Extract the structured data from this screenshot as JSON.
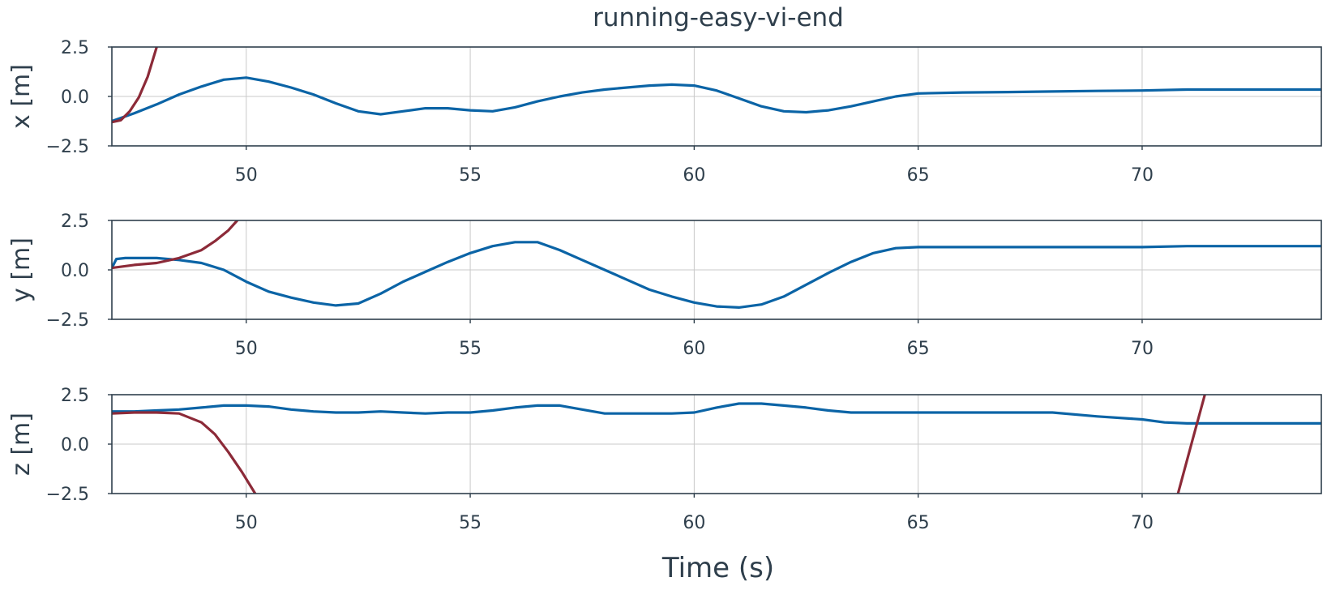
{
  "chart_data": {
    "type": "line",
    "title": "running-easy-vi-end",
    "xlabel": "Time (s)",
    "xlim": [
      47,
      74
    ],
    "xticks": [
      50,
      55,
      60,
      65,
      70
    ],
    "colors": {
      "series_a": "#0b64a6",
      "series_b": "#8c2a38",
      "text": "#2f3f4c",
      "grid": "#c9c9c9"
    },
    "grid": true,
    "panels": [
      {
        "ylabel": "x [m]",
        "ylim": [
          -2.5,
          2.5
        ],
        "yticks": [
          2.5,
          0.0,
          -2.5
        ],
        "ytick_labels": [
          "2.5",
          "0.0",
          "−2.5"
        ],
        "series": [
          {
            "x": [
              47.0,
              47.5,
              48.0,
              48.5,
              49.0,
              49.5,
              50.0,
              50.5,
              51.0,
              51.5,
              52.0,
              52.5,
              53.0,
              53.5,
              54.0,
              54.5,
              55.0,
              55.5,
              56.0,
              56.5,
              57.0,
              57.5,
              58.0,
              58.5,
              59.0,
              59.5,
              60.0,
              60.5,
              61.0,
              61.5,
              62.0,
              62.5,
              63.0,
              63.5,
              64.0,
              64.5,
              65.0,
              66.0,
              67.0,
              68.0,
              69.0,
              70.0,
              71.0,
              72.0,
              73.0,
              74.0
            ],
            "y": [
              -1.25,
              -0.85,
              -0.4,
              0.1,
              0.5,
              0.85,
              0.95,
              0.75,
              0.45,
              0.1,
              -0.35,
              -0.75,
              -0.9,
              -0.75,
              -0.6,
              -0.6,
              -0.7,
              -0.75,
              -0.55,
              -0.25,
              0.0,
              0.2,
              0.35,
              0.45,
              0.55,
              0.6,
              0.55,
              0.3,
              -0.1,
              -0.5,
              -0.75,
              -0.8,
              -0.7,
              -0.5,
              -0.25,
              0.0,
              0.15,
              0.2,
              0.22,
              0.25,
              0.28,
              0.3,
              0.35,
              0.35,
              0.35,
              0.35
            ]
          },
          {
            "x": [
              47.0,
              47.2,
              47.4,
              47.6,
              47.8,
              48.0
            ],
            "y": [
              -1.3,
              -1.2,
              -0.75,
              -0.05,
              1.0,
              2.5
            ]
          }
        ]
      },
      {
        "ylabel": "y [m]",
        "ylim": [
          -2.5,
          2.5
        ],
        "yticks": [
          2.5,
          0.0,
          -2.5
        ],
        "ytick_labels": [
          "2.5",
          "0.0",
          "−2.5"
        ],
        "series": [
          {
            "x": [
              47.0,
              47.1,
              47.3,
              48.0,
              48.5,
              49.0,
              49.5,
              50.0,
              50.5,
              51.0,
              51.5,
              52.0,
              52.5,
              53.0,
              53.5,
              54.0,
              54.5,
              55.0,
              55.5,
              56.0,
              56.5,
              57.0,
              57.5,
              58.0,
              58.5,
              59.0,
              59.5,
              60.0,
              60.5,
              61.0,
              61.5,
              62.0,
              62.5,
              63.0,
              63.5,
              64.0,
              64.5,
              65.0,
              66.0,
              67.0,
              68.0,
              69.0,
              70.0,
              71.0,
              72.0,
              73.0,
              74.0
            ],
            "y": [
              0.1,
              0.55,
              0.6,
              0.6,
              0.5,
              0.35,
              0.0,
              -0.6,
              -1.1,
              -1.4,
              -1.65,
              -1.8,
              -1.7,
              -1.2,
              -0.6,
              -0.1,
              0.4,
              0.85,
              1.2,
              1.4,
              1.4,
              1.0,
              0.5,
              0.0,
              -0.5,
              -1.0,
              -1.35,
              -1.65,
              -1.85,
              -1.9,
              -1.75,
              -1.35,
              -0.75,
              -0.15,
              0.4,
              0.85,
              1.1,
              1.15,
              1.15,
              1.15,
              1.15,
              1.15,
              1.15,
              1.2,
              1.2,
              1.2,
              1.2
            ]
          },
          {
            "x": [
              47.0,
              47.5,
              48.0,
              48.5,
              49.0,
              49.3,
              49.6,
              49.8
            ],
            "y": [
              0.1,
              0.25,
              0.35,
              0.6,
              1.0,
              1.45,
              2.0,
              2.5
            ]
          }
        ]
      },
      {
        "ylabel": "z [m]",
        "ylim": [
          -2.5,
          2.5
        ],
        "yticks": [
          2.5,
          0.0,
          -2.5
        ],
        "ytick_labels": [
          "2.5",
          "0.0",
          "−2.5"
        ],
        "series": [
          {
            "x": [
              47.0,
              47.5,
              48.0,
              48.5,
              49.0,
              49.5,
              50.0,
              50.5,
              51.0,
              51.5,
              52.0,
              52.5,
              53.0,
              53.5,
              54.0,
              54.5,
              55.0,
              55.5,
              56.0,
              56.5,
              57.0,
              57.5,
              58.0,
              58.5,
              59.0,
              59.5,
              60.0,
              60.5,
              61.0,
              61.5,
              62.0,
              62.5,
              63.0,
              63.5,
              64.0,
              64.5,
              65.0,
              66.0,
              67.0,
              68.0,
              69.0,
              70.0,
              70.5,
              71.0,
              72.0,
              73.0,
              74.0
            ],
            "y": [
              1.65,
              1.65,
              1.7,
              1.75,
              1.85,
              1.95,
              1.95,
              1.9,
              1.75,
              1.65,
              1.6,
              1.6,
              1.65,
              1.6,
              1.55,
              1.6,
              1.6,
              1.7,
              1.85,
              1.95,
              1.95,
              1.75,
              1.55,
              1.55,
              1.55,
              1.55,
              1.6,
              1.85,
              2.05,
              2.05,
              1.95,
              1.85,
              1.7,
              1.6,
              1.6,
              1.6,
              1.6,
              1.6,
              1.6,
              1.6,
              1.4,
              1.25,
              1.1,
              1.05,
              1.05,
              1.05,
              1.05
            ]
          },
          {
            "x": [
              47.0,
              47.5,
              48.0,
              48.5,
              49.0,
              49.3,
              49.6,
              49.9,
              50.2
            ],
            "y": [
              1.55,
              1.6,
              1.6,
              1.55,
              1.1,
              0.5,
              -0.4,
              -1.4,
              -2.5
            ]
          },
          {
            "x": [
              70.8,
              71.1,
              71.4
            ],
            "y": [
              -2.5,
              0.0,
              2.5
            ]
          }
        ]
      }
    ]
  }
}
